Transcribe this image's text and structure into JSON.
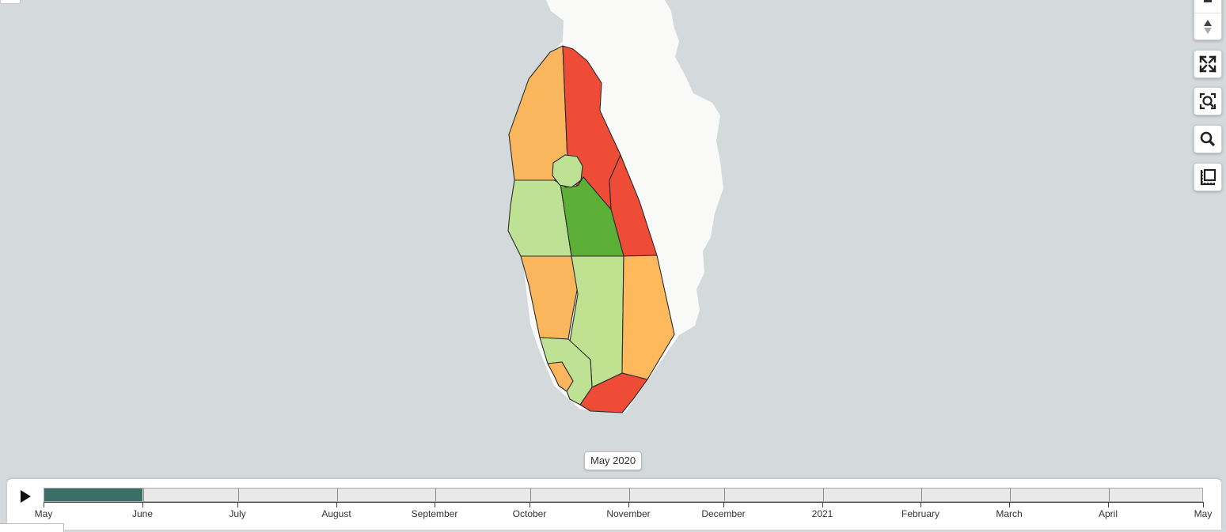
{
  "map": {
    "regions": [
      {
        "id": "north-west",
        "color": "#f9b65d"
      },
      {
        "id": "north-east",
        "color": "#ee4c36"
      },
      {
        "id": "east-coast",
        "color": "#ee4c36"
      },
      {
        "id": "central-circle",
        "color": "#bde294"
      },
      {
        "id": "west-central",
        "color": "#bde294"
      },
      {
        "id": "central-dark",
        "color": "#5cb037"
      },
      {
        "id": "south-west",
        "color": "#f9b65d"
      },
      {
        "id": "south-central",
        "color": "#c0e290"
      },
      {
        "id": "south-east",
        "color": "#fdb95c"
      },
      {
        "id": "south-west-hook",
        "color": "#bde294"
      },
      {
        "id": "south-inner",
        "color": "#f9b65d"
      },
      {
        "id": "south-tip",
        "color": "#ee4c36"
      }
    ],
    "land_color": "#f9f9f8",
    "water_color": "#d4d9dc",
    "stroke_color": "#2b2b2b"
  },
  "date_label": "May 2020",
  "timeline": {
    "months": [
      "May",
      "June",
      "July",
      "August",
      "September",
      "October",
      "November",
      "December",
      "2021",
      "February",
      "March",
      "April",
      "May"
    ],
    "progress_fraction": 0.0847,
    "progress_color": "#3c6e68"
  },
  "icons": {
    "zoom_in": "plus-icon",
    "compass": "compass-icon",
    "fullscreen": "expand-icon",
    "zoom_extent": "zoom-extent-icon",
    "search": "search-icon",
    "measure": "measure-icon",
    "play": "play-icon"
  }
}
